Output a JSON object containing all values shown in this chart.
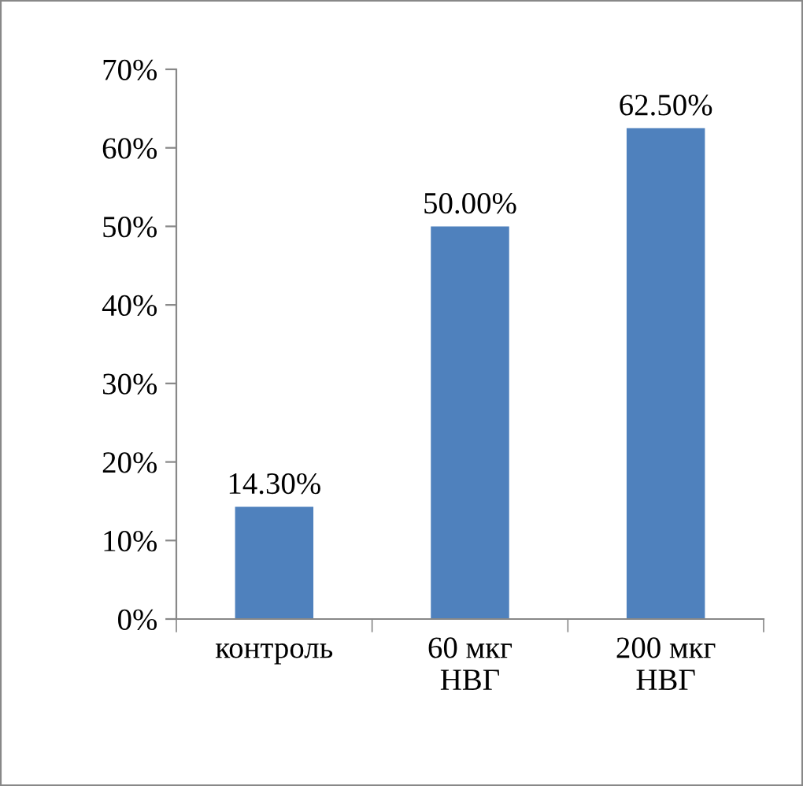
{
  "chart_data": {
    "type": "bar",
    "categories": [
      "контроль",
      "60 мкг\nНВГ",
      "200 мкг\nНВГ"
    ],
    "values": [
      14.3,
      50.0,
      62.5
    ],
    "color": "#4f81bd",
    "value_labels": [
      "14.30%",
      "50.00%",
      "62.50%"
    ],
    "ylim": [
      0,
      70
    ],
    "yticks": [
      {
        "value": 0,
        "label": "0%"
      },
      {
        "value": 10,
        "label": "10%"
      },
      {
        "value": 20,
        "label": "20%"
      },
      {
        "value": 30,
        "label": "30%"
      },
      {
        "value": 40,
        "label": "40%"
      },
      {
        "value": 50,
        "label": "50%"
      },
      {
        "value": 60,
        "label": "60%"
      },
      {
        "value": 70,
        "label": "70%"
      }
    ],
    "grid": false,
    "legend": false
  }
}
